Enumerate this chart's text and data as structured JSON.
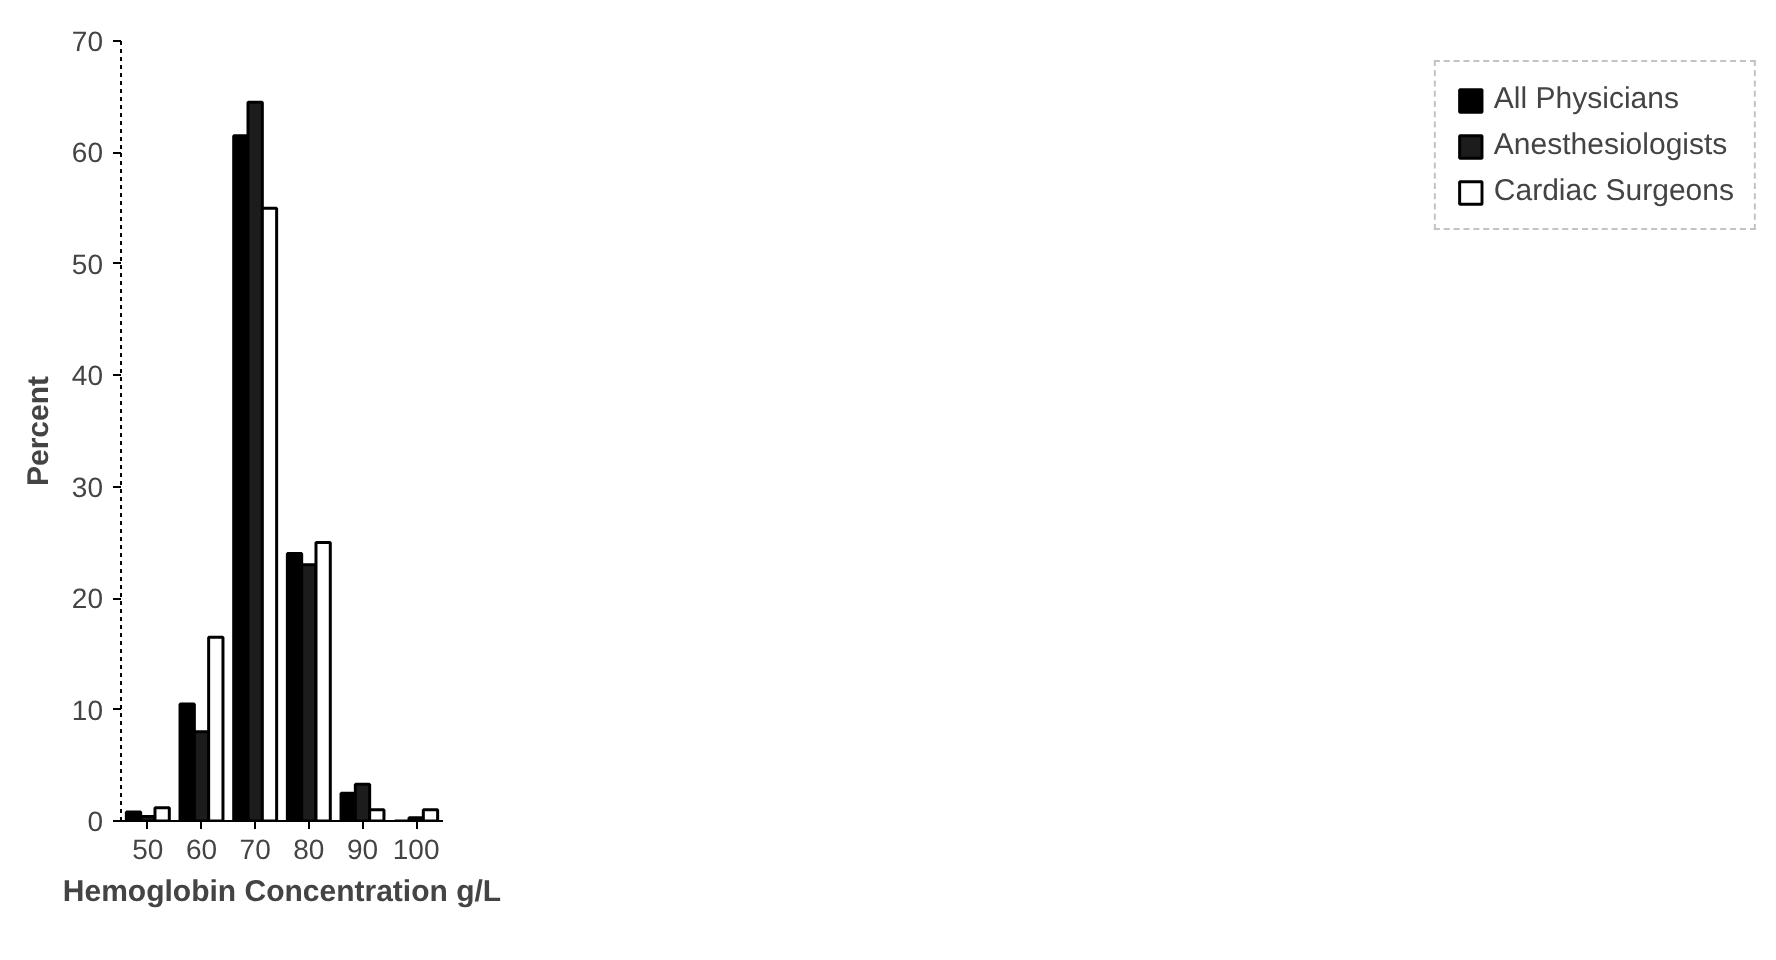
{
  "chart_data": {
    "type": "bar",
    "xlabel": "Hemoglobin Concentration g/L",
    "ylabel": "Percent",
    "categories": [
      "50",
      "60",
      "70",
      "80",
      "90",
      "100"
    ],
    "series": [
      {
        "name": "All Physicians",
        "color": "#000000",
        "values": [
          0.8,
          10.5,
          61.5,
          24,
          2.5,
          0
        ]
      },
      {
        "name": "Anesthesiologists",
        "color": "#1c1c1c",
        "values": [
          0.4,
          8,
          64.5,
          23,
          3.3,
          0.3
        ]
      },
      {
        "name": "Cardiac Surgeons",
        "color": "#ffffff",
        "values": [
          1.2,
          16.5,
          55,
          25,
          1,
          1
        ]
      }
    ],
    "ylim": [
      0,
      70
    ],
    "yticks": [
      0,
      10,
      20,
      30,
      40,
      50,
      60,
      70
    ],
    "grid": false,
    "legend": "right"
  }
}
